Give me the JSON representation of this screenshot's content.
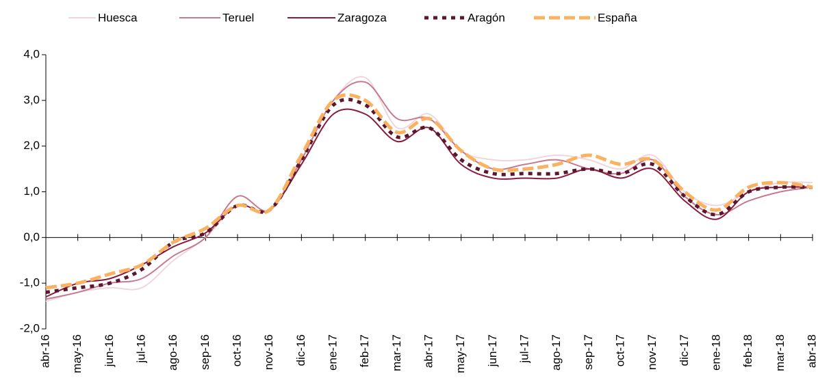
{
  "chart_data": {
    "type": "line",
    "categories": [
      "abr-16",
      "may-16",
      "jun-16",
      "jul-16",
      "ago-16",
      "sep-16",
      "oct-16",
      "nov-16",
      "dic-16",
      "ene-17",
      "feb-17",
      "mar-17",
      "abr-17",
      "may-17",
      "jun-17",
      "jul-17",
      "ago-17",
      "sep-17",
      "oct-17",
      "nov-17",
      "dic-17",
      "ene-18",
      "feb-18",
      "mar-18",
      "abr-18"
    ],
    "series": [
      {
        "name": "Huesca",
        "color": "#efd6dc",
        "line_style": "solid",
        "values": [
          -1.4,
          -1.2,
          -1.1,
          -1.1,
          -0.5,
          0.0,
          0.7,
          0.6,
          1.7,
          3.0,
          3.5,
          2.4,
          2.7,
          1.9,
          1.7,
          1.7,
          1.8,
          1.7,
          1.5,
          1.8,
          1.0,
          0.7,
          1.0,
          1.2,
          1.2
        ]
      },
      {
        "name": "Teruel",
        "color": "#c8788f",
        "line_style": "solid",
        "values": [
          -1.35,
          -1.2,
          -1.0,
          -0.9,
          -0.4,
          0.0,
          0.9,
          0.6,
          1.7,
          3.0,
          3.4,
          2.6,
          2.6,
          1.9,
          1.5,
          1.6,
          1.7,
          1.5,
          1.4,
          1.7,
          0.9,
          0.5,
          0.8,
          1.0,
          1.1
        ]
      },
      {
        "name": "Zaragoza",
        "color": "#8b1a3a",
        "line_style": "solid",
        "values": [
          -1.3,
          -1.0,
          -0.9,
          -0.6,
          -0.2,
          0.1,
          0.7,
          0.6,
          1.6,
          2.7,
          2.7,
          2.1,
          2.4,
          1.6,
          1.3,
          1.3,
          1.3,
          1.5,
          1.3,
          1.5,
          0.8,
          0.4,
          1.0,
          1.1,
          1.1
        ]
      },
      {
        "name": "Aragón",
        "color": "#5a1730",
        "line_style": "dotted",
        "values": [
          -1.2,
          -1.1,
          -1.0,
          -0.7,
          -0.1,
          0.1,
          0.7,
          0.6,
          1.7,
          2.9,
          2.9,
          2.2,
          2.4,
          1.7,
          1.4,
          1.4,
          1.4,
          1.5,
          1.4,
          1.6,
          0.9,
          0.5,
          1.0,
          1.1,
          1.1
        ]
      },
      {
        "name": "España",
        "color": "#f9b262",
        "line_style": "dashed",
        "values": [
          -1.1,
          -1.0,
          -0.8,
          -0.6,
          -0.1,
          0.2,
          0.7,
          0.6,
          1.8,
          3.0,
          3.0,
          2.3,
          2.6,
          1.9,
          1.5,
          1.5,
          1.6,
          1.8,
          1.6,
          1.7,
          1.0,
          0.6,
          1.1,
          1.2,
          1.1
        ]
      }
    ],
    "ylim": [
      -2,
      4
    ],
    "yticks": [
      {
        "value": -2,
        "label": "-2,0"
      },
      {
        "value": -1,
        "label": "-1,0"
      },
      {
        "value": 0,
        "label": "0,0"
      },
      {
        "value": 1,
        "label": "1,0"
      },
      {
        "value": 2,
        "label": "2,0"
      },
      {
        "value": 3,
        "label": "3,0"
      },
      {
        "value": 4,
        "label": "4,0"
      }
    ],
    "grid": false,
    "legend": "top"
  }
}
